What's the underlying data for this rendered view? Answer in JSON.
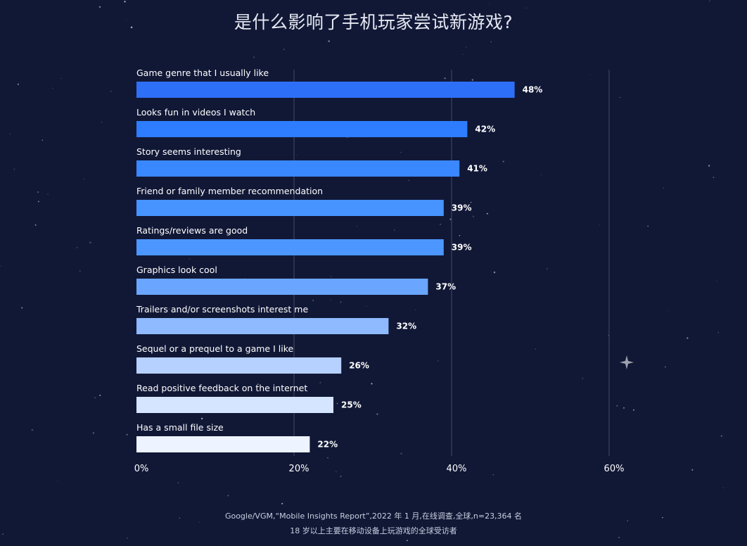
{
  "title": "是什么影响了手机玩家尝试新游戏?",
  "footnote": {
    "line1": "Google/VGM,“Mobile Insights Report”,2022 年 1 月,在线调查,全球,n=23,364 名",
    "line2": "18 岁以上主要在移动设备上玩游戏的全球受访者"
  },
  "colors": {
    "background": "#111836",
    "bars": [
      "#2e6ff7",
      "#2e7cff",
      "#3a88ff",
      "#4793ff",
      "#4c96ff",
      "#6aa6ff",
      "#8fbaff",
      "#b6d1ff",
      "#d5e5ff",
      "#edf3ff"
    ]
  },
  "chart_data": {
    "type": "bar",
    "orientation": "horizontal",
    "categories": [
      "Game genre that I usually like",
      "Looks fun in videos I watch",
      "Story seems interesting",
      "Friend or family member recommendation",
      "Ratings/reviews are good",
      "Graphics look cool",
      "Trailers and/or screenshots interest me",
      "Sequel or a prequel to a game I like",
      "Read positive feedback on the internet",
      "Has a small file size"
    ],
    "values": [
      48,
      42,
      41,
      39,
      39,
      37,
      32,
      26,
      25,
      22
    ],
    "value_labels": [
      "48%",
      "42%",
      "41%",
      "39%",
      "39%",
      "37%",
      "32%",
      "26%",
      "25%",
      "22%"
    ],
    "xlim": [
      0,
      60
    ],
    "xticks": [
      0,
      20,
      40,
      60
    ],
    "xtick_labels": [
      "0%",
      "20%",
      "40%",
      "60%"
    ],
    "grid": true,
    "xlabel": "",
    "ylabel": ""
  }
}
